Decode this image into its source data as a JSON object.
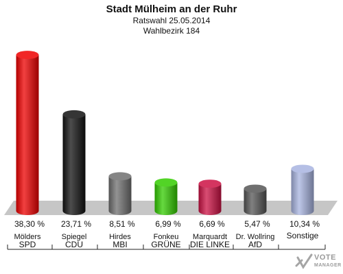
{
  "header": {
    "title": "Stadt Mülheim an der Ruhr",
    "subtitle": "Ratswahl 25.05.2014",
    "district": "Wahlbezirk 184"
  },
  "logo": {
    "line1": "VOTE",
    "line2": "MANAGER"
  },
  "chart_data": {
    "type": "bar",
    "title": "Stadt Mülheim an der Ruhr",
    "subtitle": "Ratswahl 25.05.2014 · Wahlbezirk 184",
    "categories": [
      "SPD",
      "CDU",
      "MBI",
      "GRÜNE",
      "DIE LINKE",
      "AfD",
      "Sonstige"
    ],
    "candidates": [
      "Mölders",
      "Spiegel",
      "Hirdes",
      "Fonkeu",
      "Marquardt",
      "Dr. Wollring",
      ""
    ],
    "values": [
      38.3,
      23.71,
      8.51,
      6.99,
      6.69,
      5.47,
      10.34
    ],
    "value_labels": [
      "38,30 %",
      "23,71 %",
      "8,51 %",
      "6,99 %",
      "6,69 %",
      "5,47 %",
      "10,34 %"
    ],
    "colors": [
      "#ee0000",
      "#111111",
      "#6f6f6f",
      "#33cc00",
      "#cc1144",
      "#555555",
      "#a8b4e0"
    ],
    "ylim": [
      0,
      40
    ],
    "grid": false,
    "legend": "none"
  }
}
